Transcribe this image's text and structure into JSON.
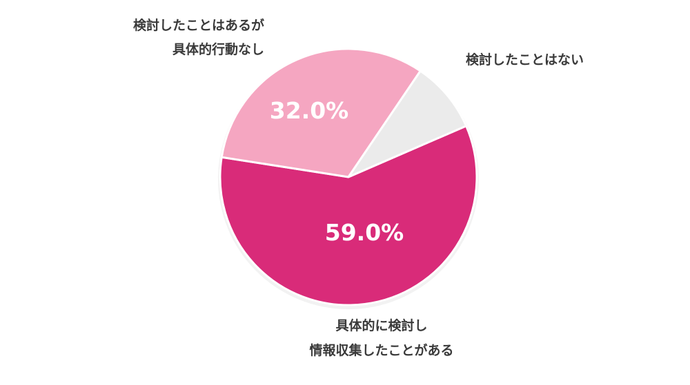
{
  "chart_data": {
    "type": "pie",
    "slices": [
      {
        "label_lines": [
          "具体的に検討し",
          "情報収集したことがある"
        ],
        "value": 59.0,
        "value_label": "59.0%",
        "color": "#d92b79"
      },
      {
        "label_lines": [
          "検討したことはあるが",
          "具体的行動なし"
        ],
        "value": 32.0,
        "value_label": "32.0%",
        "color": "#f5a6c1"
      },
      {
        "label_lines": [
          "検討したことはない"
        ],
        "value": 9.0,
        "value_label": "",
        "color": "#ebebeb"
      }
    ],
    "legend": "none",
    "border_color": "#ffffff"
  }
}
